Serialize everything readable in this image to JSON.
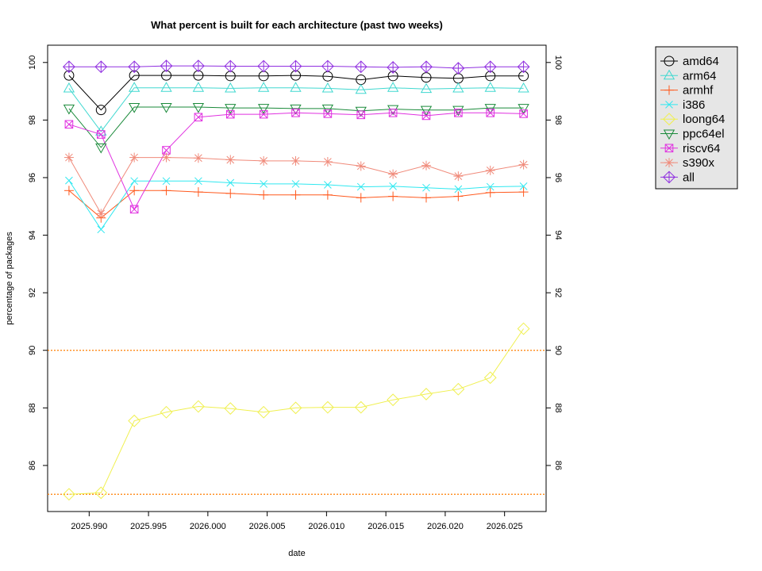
{
  "chart_data": {
    "type": "line",
    "title": "What percent is built for each architecture (past two weeks)",
    "xlabel": "date",
    "ylabel": "percentage of packages",
    "xlim": [
      2025.9865,
      2026.0285
    ],
    "ylim": [
      84.4,
      100.6
    ],
    "x_ticks": [
      "2025.990",
      "2025.995",
      "2026.000",
      "2026.005",
      "2026.010",
      "2026.015",
      "2026.020",
      "2026.025"
    ],
    "y_ticks": [
      "86",
      "88",
      "90",
      "92",
      "94",
      "96",
      "98",
      "100"
    ],
    "reference_lines": [
      90,
      85
    ],
    "reference_line_color": "#ff7f00",
    "legend_position": "top-right",
    "x": [
      2025.9883,
      2025.991,
      2025.9938,
      2025.9965,
      2025.9992,
      2026.0019,
      2026.0047,
      2026.0074,
      2026.0101,
      2026.0129,
      2026.0156,
      2026.0184,
      2026.0211,
      2026.0238,
      2026.0266
    ],
    "series": [
      {
        "name": "amd64",
        "color": "#000000",
        "marker": "circle",
        "values": [
          99.55,
          98.35,
          99.55,
          99.55,
          99.55,
          99.53,
          99.53,
          99.55,
          99.52,
          99.4,
          99.53,
          99.48,
          99.45,
          99.53,
          99.53
        ]
      },
      {
        "name": "arm64",
        "color": "#40d8d0",
        "marker": "triangle",
        "values": [
          99.1,
          97.6,
          99.12,
          99.12,
          99.12,
          99.1,
          99.12,
          99.12,
          99.1,
          99.05,
          99.12,
          99.08,
          99.1,
          99.12,
          99.1
        ]
      },
      {
        "name": "armhf",
        "color": "#ff5a1f",
        "marker": "plus",
        "values": [
          95.55,
          94.6,
          95.55,
          95.55,
          95.5,
          95.45,
          95.4,
          95.4,
          95.4,
          95.3,
          95.35,
          95.3,
          95.35,
          95.48,
          95.5
        ]
      },
      {
        "name": "i386",
        "color": "#30e8f0",
        "marker": "x",
        "values": [
          95.9,
          94.2,
          95.88,
          95.88,
          95.88,
          95.82,
          95.78,
          95.78,
          95.75,
          95.68,
          95.7,
          95.65,
          95.6,
          95.68,
          95.7
        ]
      },
      {
        "name": "loong64",
        "color": "#f0f050",
        "marker": "diamond",
        "values": [
          85.0,
          85.05,
          87.55,
          87.85,
          88.05,
          87.98,
          87.85,
          88.0,
          88.02,
          88.02,
          88.28,
          88.48,
          88.65,
          89.05,
          90.75
        ]
      },
      {
        "name": "ppc64el",
        "color": "#1a8a3a",
        "marker": "triangle-down",
        "values": [
          98.4,
          97.05,
          98.45,
          98.45,
          98.45,
          98.42,
          98.42,
          98.4,
          98.4,
          98.32,
          98.38,
          98.35,
          98.35,
          98.42,
          98.42
        ]
      },
      {
        "name": "riscv64",
        "color": "#e030e0",
        "marker": "square-x",
        "values": [
          97.85,
          97.5,
          94.9,
          96.95,
          98.1,
          98.2,
          98.2,
          98.25,
          98.22,
          98.18,
          98.25,
          98.15,
          98.25,
          98.25,
          98.22
        ]
      },
      {
        "name": "s390x",
        "color": "#f08a7a",
        "marker": "asterisk",
        "values": [
          96.7,
          94.75,
          96.7,
          96.7,
          96.68,
          96.62,
          96.58,
          96.58,
          96.55,
          96.4,
          96.12,
          96.42,
          96.05,
          96.25,
          96.45
        ]
      },
      {
        "name": "all",
        "color": "#9030e0",
        "marker": "diamond-plus",
        "values": [
          99.85,
          99.85,
          99.85,
          99.88,
          99.88,
          99.87,
          99.87,
          99.87,
          99.87,
          99.85,
          99.83,
          99.85,
          99.8,
          99.85,
          99.85
        ]
      }
    ]
  }
}
